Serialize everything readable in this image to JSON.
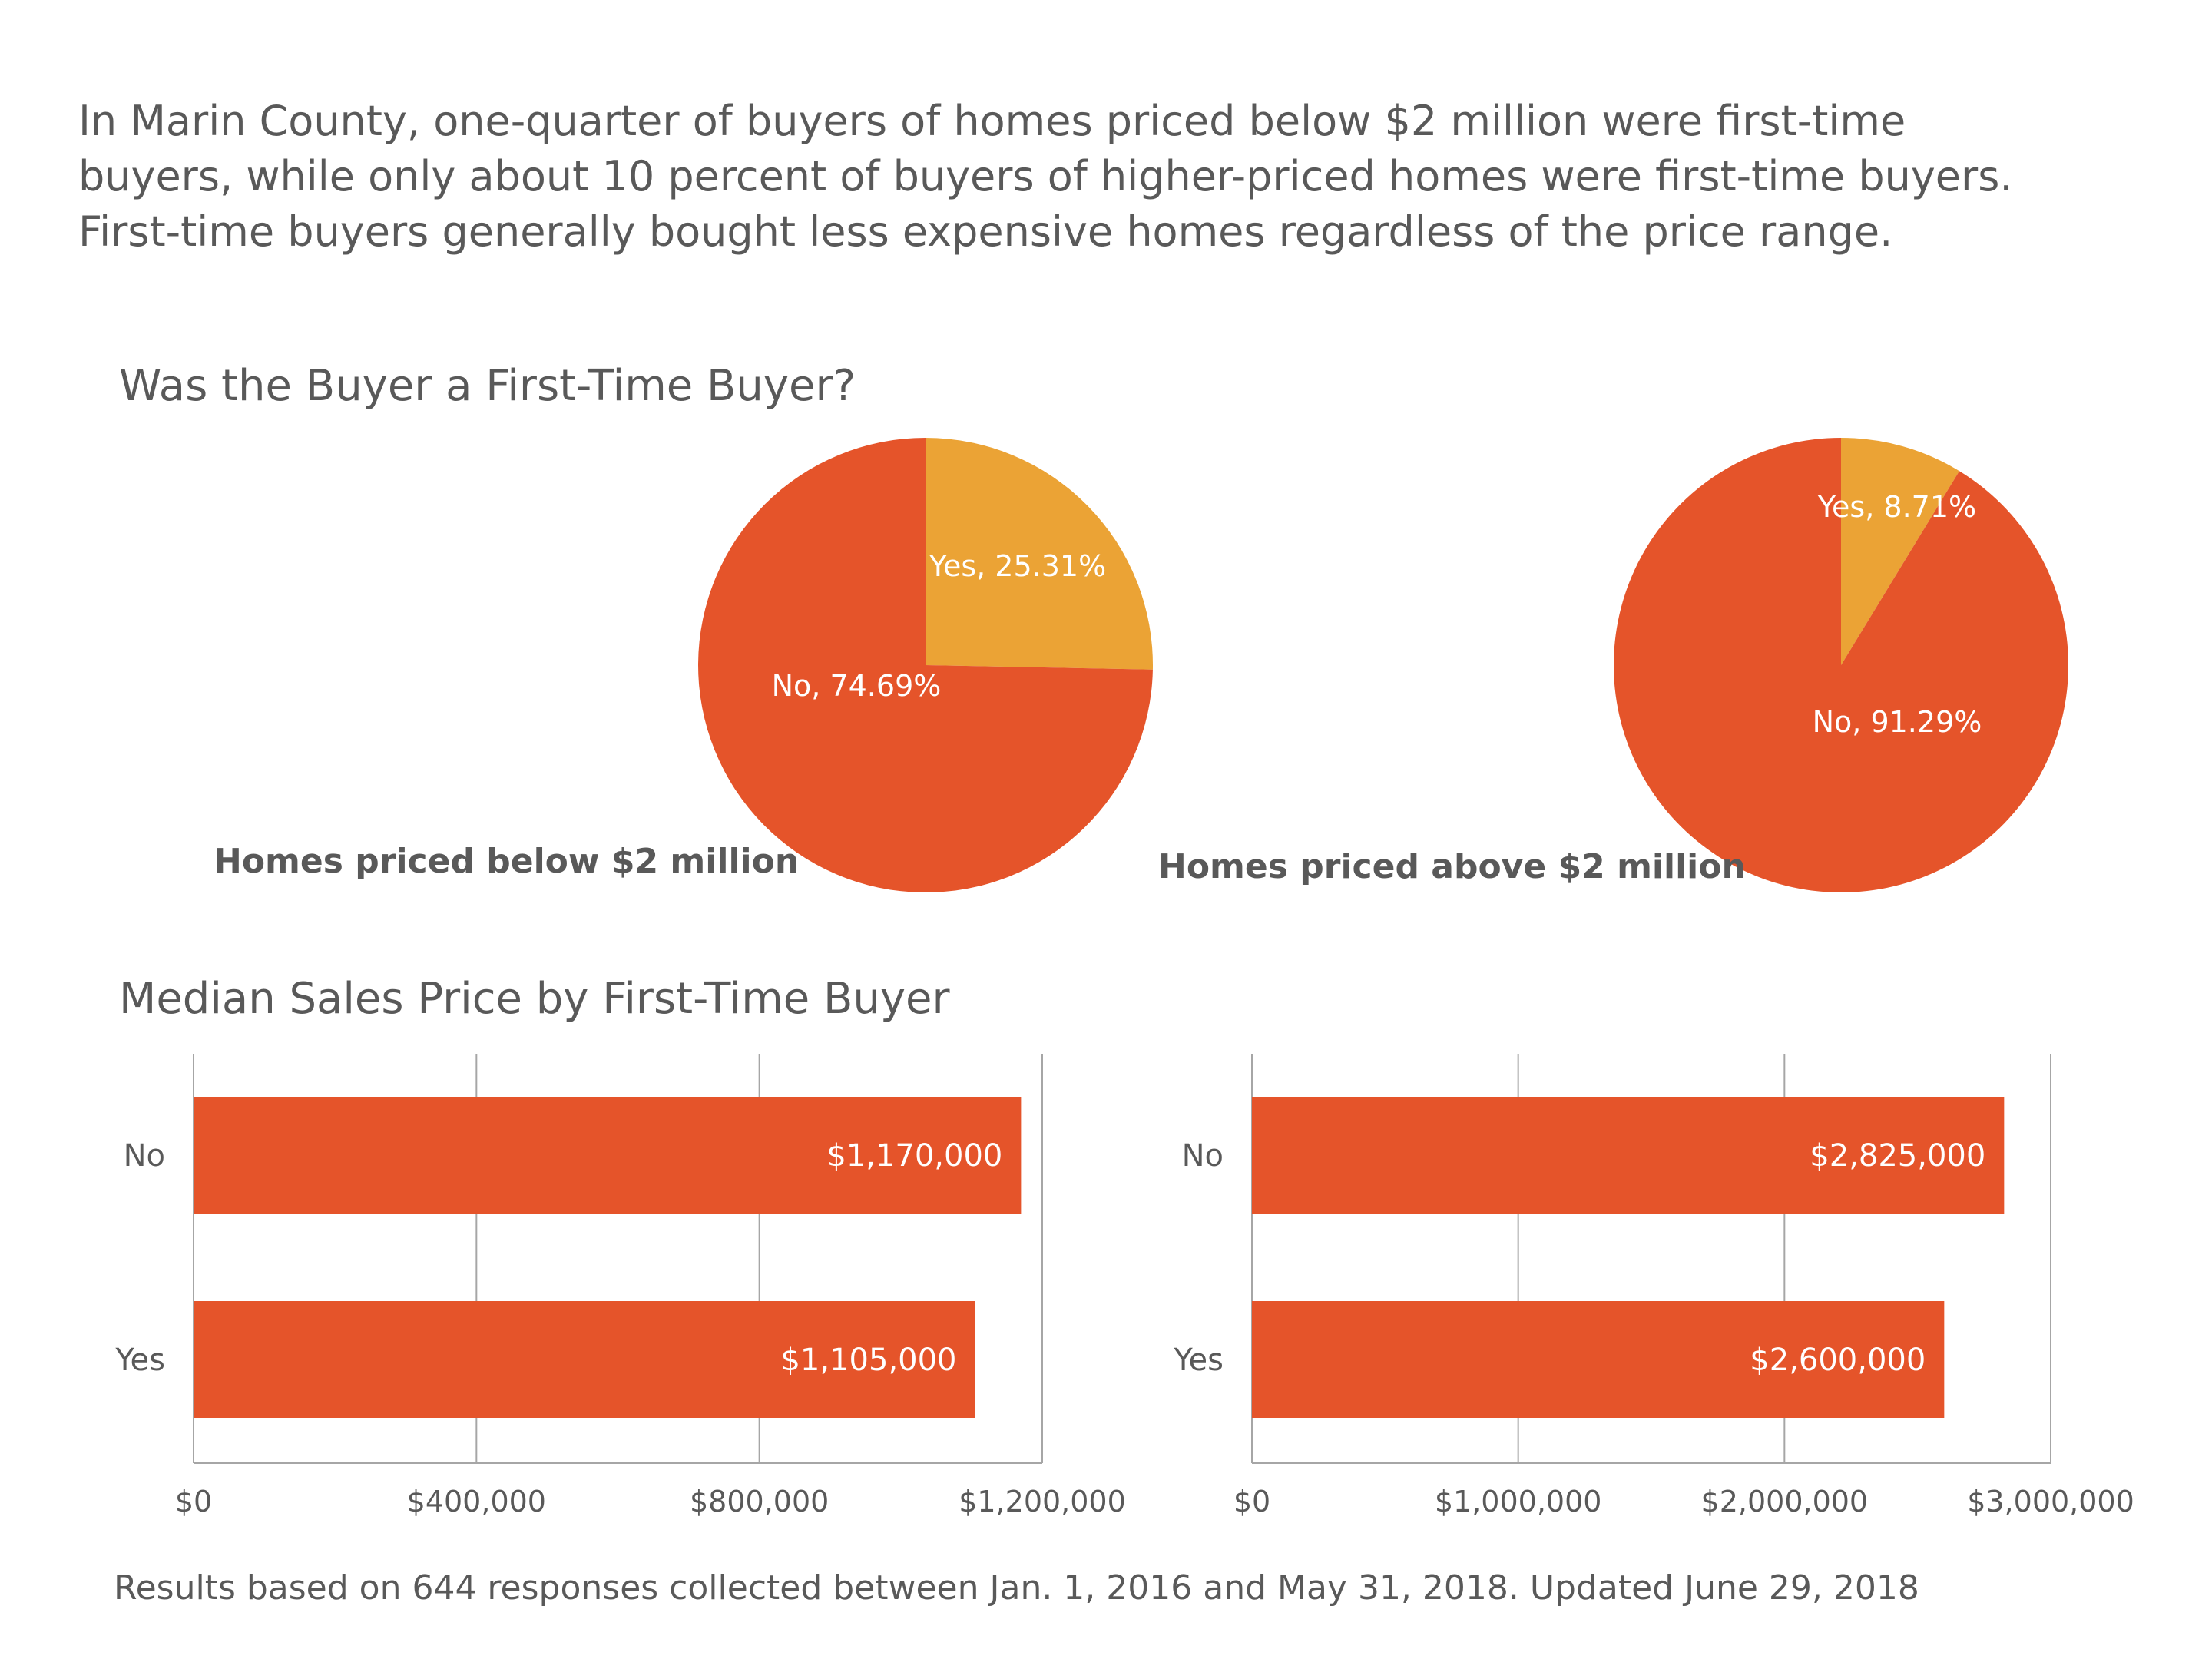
{
  "intro": {
    "lines": [
      "In Marin County, one-quarter of buyers of homes priced below $2 million were first-time",
      "buyers, while only about 10 percent of buyers of higher-priced homes were first-time buyers.",
      "First-time buyers generally bought less expensive homes regardless of the price range."
    ]
  },
  "sections": {
    "pie_title": "Was the Buyer a First-Time Buyer?",
    "bar_title": "Median Sales Price by First-Time Buyer"
  },
  "footer": "Results based on 644 responses collected between Jan. 1, 2016 and May 31, 2018. Updated June 29, 2018",
  "colors": {
    "no": "#E5542A",
    "yes": "#EBA335",
    "text": "#595959",
    "grid": "#A6A6A6",
    "label_on_fill": "#FFFFFF"
  },
  "chart_data": [
    {
      "type": "pie",
      "caption": "Homes priced below $2 million",
      "slices": [
        {
          "label": "Yes",
          "value": 25.31,
          "data_label": "Yes, 25.31%",
          "color": "#EBA335"
        },
        {
          "label": "No",
          "value": 74.69,
          "data_label": "No, 74.69%",
          "color": "#E5542A"
        }
      ]
    },
    {
      "type": "pie",
      "caption": "Homes priced above $2 million",
      "slices": [
        {
          "label": "Yes",
          "value": 8.71,
          "data_label": "Yes, 8.71%",
          "color": "#EBA335"
        },
        {
          "label": "No",
          "value": 91.29,
          "data_label": "No, 91.29%",
          "color": "#E5542A"
        }
      ]
    },
    {
      "type": "bar",
      "orientation": "horizontal",
      "categories": [
        "No",
        "Yes"
      ],
      "values": [
        1170000,
        1105000
      ],
      "data_labels": [
        "$1,170,000",
        "$1,105,000"
      ],
      "xlim": [
        0,
        1200000
      ],
      "xticks": [
        0,
        400000,
        800000,
        1200000
      ],
      "xtick_labels": [
        "$0",
        "$400,000",
        "$800,000",
        "$1,200,000"
      ],
      "grid": true
    },
    {
      "type": "bar",
      "orientation": "horizontal",
      "categories": [
        "No",
        "Yes"
      ],
      "values": [
        2825000,
        2600000
      ],
      "data_labels": [
        "$2,825,000",
        "$2,600,000"
      ],
      "xlim": [
        0,
        3000000
      ],
      "xticks": [
        0,
        1000000,
        2000000,
        3000000
      ],
      "xtick_labels": [
        "$0",
        "$1,000,000",
        "$2,000,000",
        "$3,000,000"
      ],
      "grid": true
    }
  ]
}
